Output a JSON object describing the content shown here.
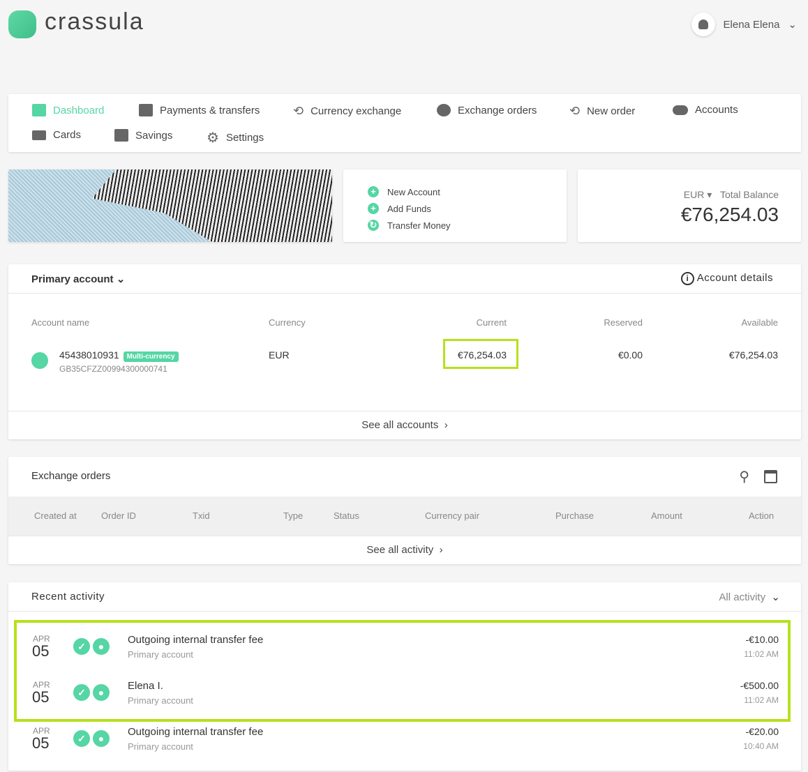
{
  "brand": {
    "name": "crassula",
    "accent": "#55d6a4",
    "highlight": "#b6e11d"
  },
  "user": {
    "name": "Elena Elena"
  },
  "nav": [
    {
      "label": "Dashboard",
      "icon": "dashboard-icon",
      "active": true
    },
    {
      "label": "Payments & transfers",
      "icon": "list-icon"
    },
    {
      "label": "Currency exchange",
      "icon": "exchange-icon"
    },
    {
      "label": "Exchange orders",
      "icon": "orders-icon"
    },
    {
      "label": "New order",
      "icon": "exchange-icon"
    },
    {
      "label": "Accounts",
      "icon": "toggle-icon"
    },
    {
      "label": "Cards",
      "icon": "card-icon"
    },
    {
      "label": "Savings",
      "icon": "safe-icon"
    },
    {
      "label": "Settings",
      "icon": "gear-icon"
    }
  ],
  "quick_actions": [
    {
      "label": "New Account",
      "icon": "plus-icon"
    },
    {
      "label": "Add Funds",
      "icon": "plus-icon"
    },
    {
      "label": "Transfer Money",
      "icon": "refresh-icon"
    }
  ],
  "balance": {
    "currency": "EUR",
    "label": "Total Balance",
    "amount": "€76,254.03"
  },
  "accounts": {
    "selector": "Primary account",
    "details_link": "Account details",
    "headers": [
      "Account name",
      "Currency",
      "Current",
      "Reserved",
      "Available"
    ],
    "row": {
      "number": "45438010931",
      "badge": "Multi-currency",
      "iban": "GB35CFZZ00994300000741",
      "currency": "EUR",
      "current": "€76,254.03",
      "reserved": "€0.00",
      "available": "€76,254.03"
    },
    "footer": "See all accounts"
  },
  "exchange_orders": {
    "title": "Exchange orders",
    "headers": [
      "Created at",
      "Order ID",
      "Txid",
      "Type",
      "Status",
      "Currency pair",
      "Purchase",
      "Amount",
      "Action"
    ],
    "footer": "See all activity"
  },
  "recent": {
    "title": "Recent activity",
    "filter": "All activity",
    "items": [
      {
        "month": "APR",
        "day": "05",
        "title": "Outgoing internal transfer fee",
        "account": "Primary account",
        "amount": "-€10.00",
        "time": "11:02 AM"
      },
      {
        "month": "APR",
        "day": "05",
        "title": "Elena I.",
        "account": "Primary account",
        "amount": "-€500.00",
        "time": "11:02 AM"
      },
      {
        "month": "APR",
        "day": "05",
        "title": "Outgoing internal transfer fee",
        "account": "Primary account",
        "amount": "-€20.00",
        "time": "10:40 AM"
      }
    ]
  }
}
